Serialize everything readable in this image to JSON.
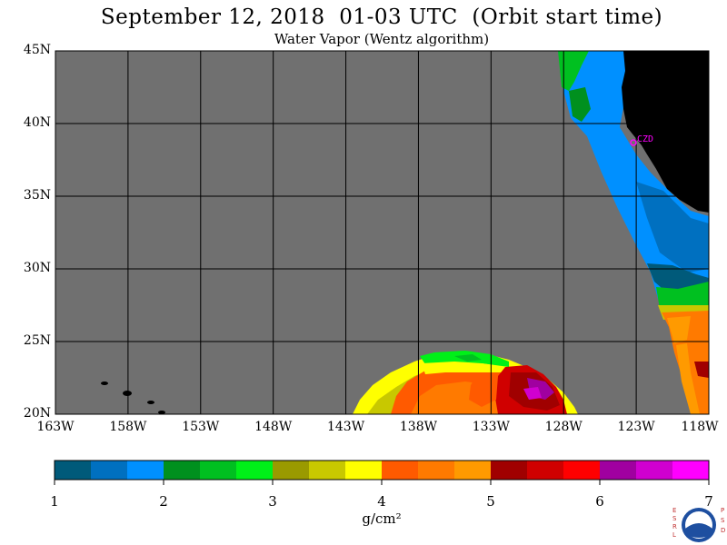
{
  "header": {
    "title": "September 12, 2018  01-03 UTC  (Orbit start time)",
    "subtitle": "Water Vapor (Wentz algorithm)"
  },
  "map": {
    "lat_labels": [
      "45N",
      "40N",
      "35N",
      "30N",
      "25N",
      "20N"
    ],
    "lon_labels": [
      "163W",
      "158W",
      "153W",
      "148W",
      "143W",
      "138W",
      "133W",
      "128W",
      "123W",
      "118W"
    ],
    "station_label": "CZD",
    "colors": {
      "no_data": "#707070",
      "land": "#000000",
      "station": "#ff00ff"
    }
  },
  "colorbar": {
    "tick_labels": [
      "1",
      "2",
      "3",
      "4",
      "5",
      "6",
      "7"
    ],
    "unit": "g/cm²",
    "colors": [
      "#005a7a",
      "#0070c0",
      "#0090ff",
      "#00901e",
      "#00c020",
      "#00f018",
      "#9a9a00",
      "#c8c800",
      "#ffff00",
      "#ff5a00",
      "#ff7a00",
      "#ff9a00",
      "#a00000",
      "#d00000",
      "#ff0000",
      "#a000a0",
      "#d000d0",
      "#ff00ff"
    ]
  },
  "logo": {
    "left_letters": "ESRL",
    "right_letters": "PSD",
    "name": "noaa-logo"
  }
}
